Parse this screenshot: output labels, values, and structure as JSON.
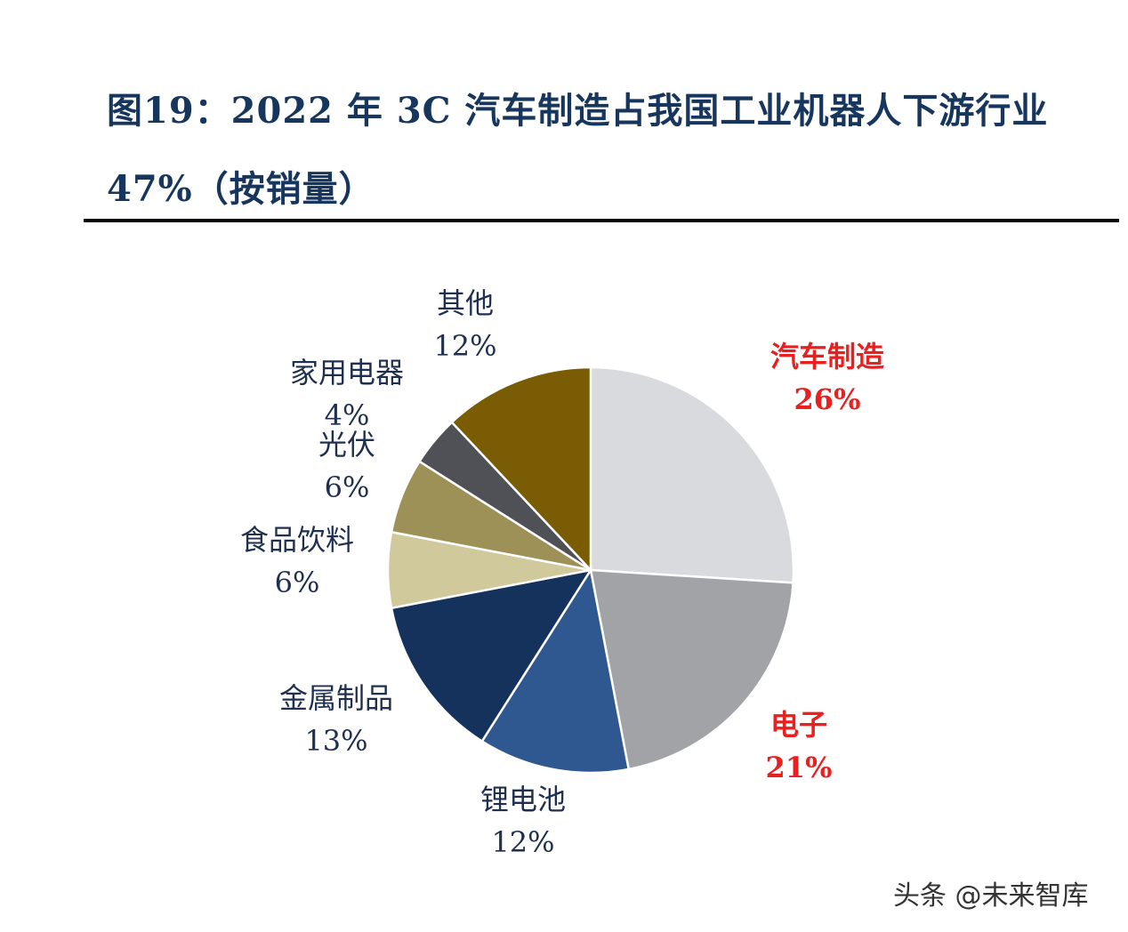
{
  "title": {
    "line1": "图19：2022 年 3C 汽车制造占我国工业机器人下游行业",
    "line2": "47%（按销量）"
  },
  "watermark": "头条 @未来智库",
  "chart_data": {
    "type": "pie",
    "start_angle_deg": 0,
    "direction": "clockwise",
    "slices": [
      {
        "label": "汽车制造",
        "value": 26,
        "pct_label": "26%",
        "color": "#d9dade",
        "label_color": "#e8201f",
        "highlight": true
      },
      {
        "label": "电子",
        "value": 21,
        "pct_label": "21%",
        "color": "#a2a3a7",
        "label_color": "#e8201f",
        "highlight": true
      },
      {
        "label": "锂电池",
        "value": 12,
        "pct_label": "12%",
        "color": "#2f5890",
        "label_color": "#1f2f4f",
        "highlight": false
      },
      {
        "label": "金属制品",
        "value": 13,
        "pct_label": "13%",
        "color": "#15325c",
        "label_color": "#1f2f4f",
        "highlight": false
      },
      {
        "label": "食品饮料",
        "value": 6,
        "pct_label": "6%",
        "color": "#d0c99c",
        "label_color": "#1f2f4f",
        "highlight": false
      },
      {
        "label": "光伏",
        "value": 6,
        "pct_label": "6%",
        "color": "#9e9158",
        "label_color": "#1f2f4f",
        "highlight": false
      },
      {
        "label": "家用电器",
        "value": 4,
        "pct_label": "4%",
        "color": "#4f5157",
        "label_color": "#1f2f4f",
        "highlight": false
      },
      {
        "label": "其他",
        "value": 12,
        "pct_label": "12%",
        "color": "#7a5c05",
        "label_color": "#1f2f4f",
        "highlight": false
      }
    ]
  }
}
